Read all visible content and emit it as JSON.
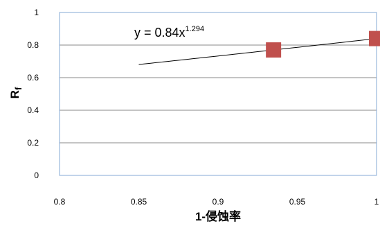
{
  "chart_data": {
    "type": "scatter",
    "xlabel": "1-侵蚀率",
    "ylabel": "R",
    "ylabel_subscript": "f",
    "xlim": [
      0.8,
      1.0
    ],
    "ylim": [
      0,
      1.0
    ],
    "x_ticks": [
      "0.8",
      "0.85",
      "0.9",
      "0.95",
      "1"
    ],
    "y_ticks": [
      "0",
      "0.2",
      "0.4",
      "0.6",
      "0.8",
      "1"
    ],
    "grid": "horizontal",
    "colors": {
      "points": "#c0504d",
      "trend": "#000000",
      "grid": "#888888",
      "plot_border": "#86a9d4"
    },
    "series": [
      {
        "values": [
          {
            "x": 0.935,
            "y": 0.77
          },
          {
            "x": 1.0,
            "y": 0.84
          }
        ]
      }
    ],
    "trendline": {
      "type": "power",
      "coefficient": 0.84,
      "exponent": 1.294,
      "x_range": [
        0.85,
        1.0
      ],
      "equation": {
        "base": "y = 0.84x",
        "exponent_label": "1.294"
      }
    }
  }
}
